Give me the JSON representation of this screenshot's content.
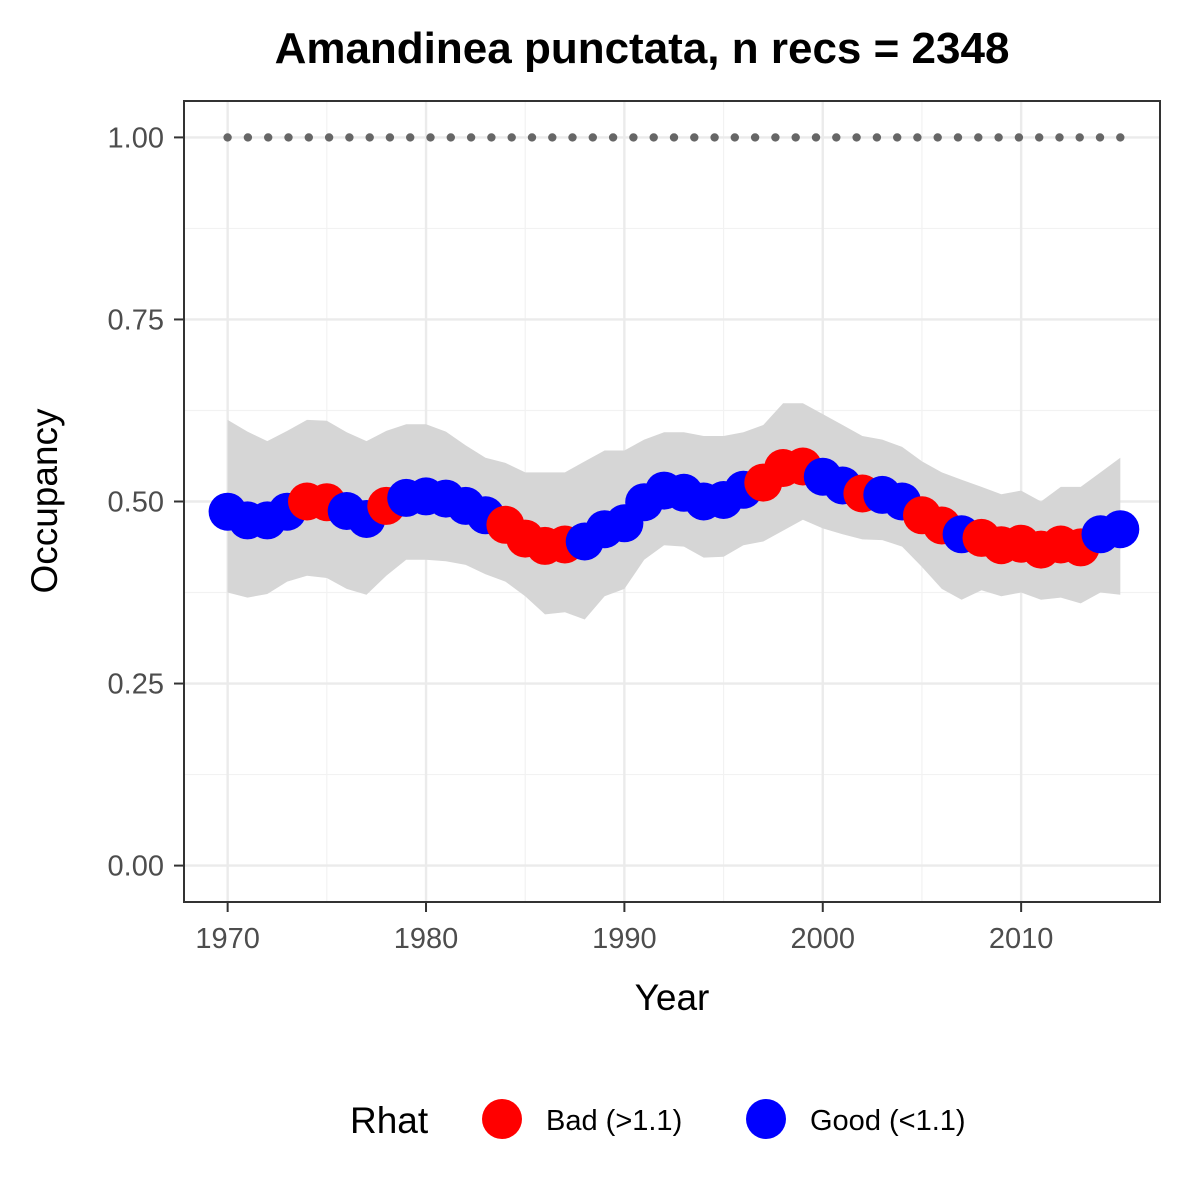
{
  "chart_data": {
    "type": "scatter",
    "title": "Amandinea punctata, n recs = 2348",
    "xlabel": "Year",
    "ylabel": "Occupancy",
    "xlim": [
      1967.8,
      2017
    ],
    "ylim": [
      -0.05,
      1.05
    ],
    "xticks": [
      1970,
      1980,
      1990,
      2000,
      2010
    ],
    "xtick_labels": [
      "1970",
      "1980",
      "1990",
      "2000",
      "2010"
    ],
    "yticks": [
      0,
      0.25,
      0.5,
      0.75,
      1.0
    ],
    "ytick_labels": [
      "0.00",
      "0.25",
      "0.50",
      "0.75",
      "1.00"
    ],
    "grid": true,
    "legend": {
      "title": "Rhat",
      "placement": "bottom",
      "entries": [
        {
          "key": "Bad",
          "label": "Bad (>1.1)",
          "color": "#ff0000"
        },
        {
          "key": "Good",
          "label": "Good (<1.1)",
          "color": "#0000ff"
        }
      ]
    },
    "colors": {
      "Bad": "#ff0000",
      "Good": "#0000ff",
      "ribbon": "#d6d6d6",
      "dotted_line": "#666666"
    },
    "reference_line": {
      "y": 1.0,
      "x_start": 1970,
      "x_end": 2015,
      "style": "dotted"
    },
    "x": [
      1970,
      1971,
      1972,
      1973,
      1974,
      1975,
      1976,
      1977,
      1978,
      1979,
      1980,
      1981,
      1982,
      1983,
      1984,
      1985,
      1986,
      1987,
      1988,
      1989,
      1990,
      1991,
      1992,
      1993,
      1994,
      1995,
      1996,
      1997,
      1998,
      1999,
      2000,
      2001,
      2002,
      2003,
      2004,
      2005,
      2006,
      2007,
      2008,
      2009,
      2010,
      2011,
      2012,
      2013,
      2014,
      2015
    ],
    "series": [
      {
        "name": "Occupancy",
        "y": [
          0.486,
          0.474,
          0.474,
          0.486,
          0.5,
          0.499,
          0.487,
          0.476,
          0.494,
          0.505,
          0.507,
          0.504,
          0.494,
          0.481,
          0.468,
          0.449,
          0.439,
          0.441,
          0.445,
          0.462,
          0.47,
          0.499,
          0.515,
          0.512,
          0.5,
          0.502,
          0.516,
          0.526,
          0.546,
          0.548,
          0.534,
          0.522,
          0.511,
          0.509,
          0.5,
          0.481,
          0.467,
          0.455,
          0.45,
          0.44,
          0.442,
          0.434,
          0.441,
          0.437,
          0.455,
          0.462
        ],
        "lower": [
          0.375,
          0.368,
          0.373,
          0.39,
          0.398,
          0.395,
          0.38,
          0.372,
          0.398,
          0.42,
          0.42,
          0.418,
          0.413,
          0.4,
          0.39,
          0.37,
          0.345,
          0.348,
          0.338,
          0.37,
          0.38,
          0.42,
          0.44,
          0.438,
          0.423,
          0.424,
          0.44,
          0.445,
          0.46,
          0.475,
          0.463,
          0.455,
          0.448,
          0.447,
          0.438,
          0.41,
          0.38,
          0.365,
          0.378,
          0.37,
          0.375,
          0.365,
          0.368,
          0.36,
          0.375,
          0.372
        ],
        "upper": [
          0.612,
          0.596,
          0.583,
          0.597,
          0.612,
          0.611,
          0.595,
          0.583,
          0.597,
          0.606,
          0.606,
          0.596,
          0.577,
          0.56,
          0.553,
          0.54,
          0.54,
          0.54,
          0.555,
          0.57,
          0.57,
          0.585,
          0.595,
          0.595,
          0.59,
          0.59,
          0.595,
          0.605,
          0.635,
          0.635,
          0.62,
          0.605,
          0.59,
          0.585,
          0.575,
          0.555,
          0.54,
          0.53,
          0.52,
          0.51,
          0.515,
          0.5,
          0.52,
          0.52,
          0.54,
          0.56
        ],
        "rhat_class": [
          "Good",
          "Good",
          "Good",
          "Good",
          "Bad",
          "Bad",
          "Good",
          "Good",
          "Bad",
          "Good",
          "Good",
          "Good",
          "Good",
          "Good",
          "Bad",
          "Bad",
          "Bad",
          "Bad",
          "Good",
          "Good",
          "Good",
          "Good",
          "Good",
          "Good",
          "Good",
          "Good",
          "Good",
          "Bad",
          "Bad",
          "Bad",
          "Good",
          "Good",
          "Bad",
          "Good",
          "Good",
          "Bad",
          "Bad",
          "Good",
          "Bad",
          "Bad",
          "Bad",
          "Bad",
          "Bad",
          "Bad",
          "Good",
          "Good"
        ]
      }
    ]
  }
}
